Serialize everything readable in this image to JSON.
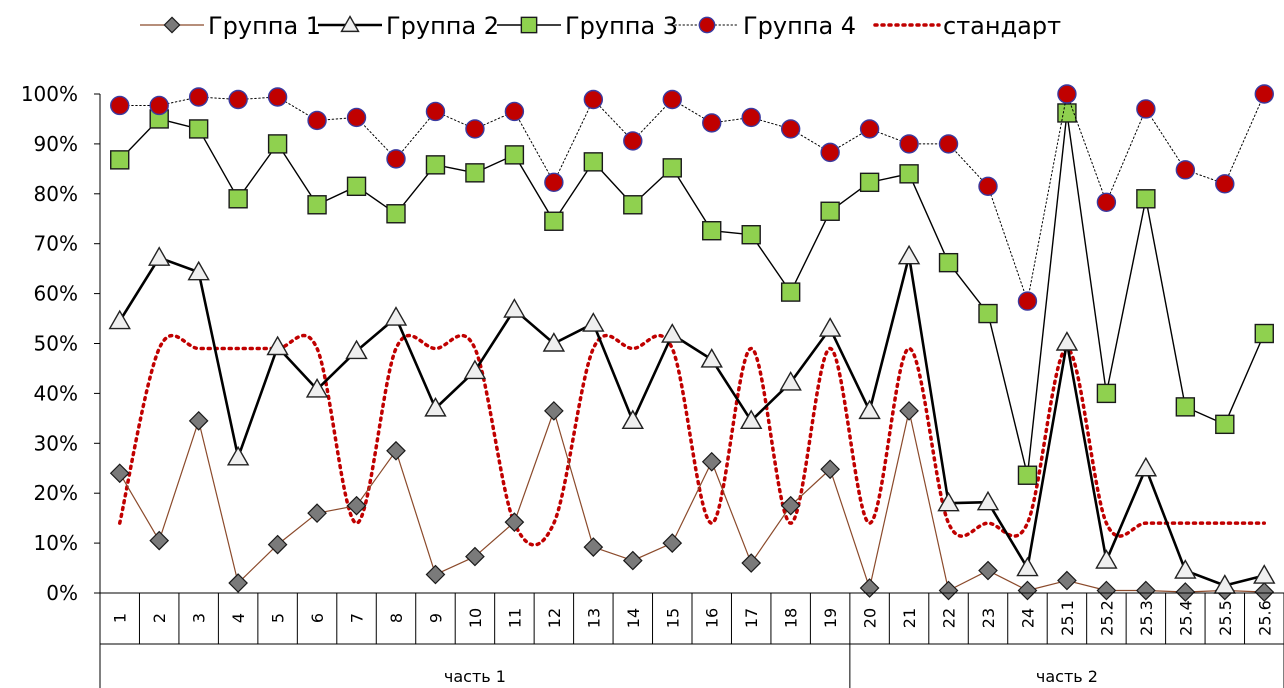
{
  "chart_data": {
    "type": "line",
    "categories": [
      "1",
      "2",
      "3",
      "4",
      "5",
      "6",
      "7",
      "8",
      "9",
      "10",
      "11",
      "12",
      "13",
      "14",
      "15",
      "16",
      "17",
      "18",
      "19",
      "20",
      "21",
      "22",
      "23",
      "24",
      "25.1",
      "25.2",
      "25.3",
      "25.4",
      "25.5",
      "25.6"
    ],
    "groups": [
      {
        "label": "часть 1",
        "start": 0,
        "end": 18
      },
      {
        "label": "часть 2",
        "start": 19,
        "end": 29
      }
    ],
    "ylim": [
      0,
      1
    ],
    "yticks": [
      "0%",
      "10%",
      "20%",
      "30%",
      "40%",
      "50%",
      "60%",
      "70%",
      "80%",
      "90%",
      "100%"
    ],
    "legend_position": "top",
    "series": [
      {
        "name": "Группа 1",
        "color": "#8B4A2B",
        "marker": "diamond",
        "values": [
          0.24,
          0.105,
          0.345,
          0.02,
          0.097,
          0.16,
          0.175,
          0.285,
          0.037,
          0.073,
          0.142,
          0.365,
          0.092,
          0.065,
          0.1,
          0.263,
          0.06,
          0.175,
          0.248,
          0.01,
          0.365,
          0.005,
          0.045,
          0.005,
          0.025,
          0.005,
          0.005,
          0.002,
          0.005,
          0.002
        ]
      },
      {
        "name": "Группа 2",
        "color": "#000000",
        "marker": "triangle",
        "values": [
          0.545,
          0.672,
          0.643,
          0.272,
          0.493,
          0.408,
          0.485,
          0.552,
          0.37,
          0.445,
          0.568,
          0.5,
          0.54,
          0.345,
          0.518,
          0.468,
          0.345,
          0.422,
          0.53,
          0.365,
          0.675,
          0.18,
          0.182,
          0.05,
          0.502,
          0.065,
          0.25,
          0.045,
          0.015,
          0.035
        ]
      },
      {
        "name": "Группа 3",
        "color": "#000000",
        "marker": "square",
        "values": [
          0.868,
          0.95,
          0.93,
          0.79,
          0.9,
          0.778,
          0.815,
          0.76,
          0.858,
          0.842,
          0.878,
          0.745,
          0.864,
          0.778,
          0.852,
          0.726,
          0.718,
          0.603,
          0.765,
          0.823,
          0.84,
          0.662,
          0.56,
          0.236,
          0.962,
          0.4,
          0.79,
          0.373,
          0.338,
          0.52
        ]
      },
      {
        "name": "Группа 4",
        "color": "#000000",
        "marker": "circle",
        "values": [
          0.977,
          0.977,
          0.994,
          0.989,
          0.994,
          0.947,
          0.953,
          0.87,
          0.965,
          0.93,
          0.965,
          0.823,
          0.989,
          0.906,
          0.989,
          0.942,
          0.953,
          0.93,
          0.883,
          0.93,
          0.9,
          0.9,
          0.815,
          0.585,
          1.0,
          0.783,
          0.97,
          0.848,
          0.82,
          1.0
        ]
      },
      {
        "name": "стандарт",
        "color": "#C00000",
        "marker": "none",
        "values": [
          0.14,
          0.49,
          0.49,
          0.49,
          0.49,
          0.49,
          0.14,
          0.49,
          0.49,
          0.49,
          0.14,
          0.14,
          0.49,
          0.49,
          0.49,
          0.14,
          0.49,
          0.14,
          0.49,
          0.14,
          0.49,
          0.14,
          0.14,
          0.14,
          0.49,
          0.14,
          0.14,
          0.14,
          0.14,
          0.14
        ]
      }
    ]
  }
}
